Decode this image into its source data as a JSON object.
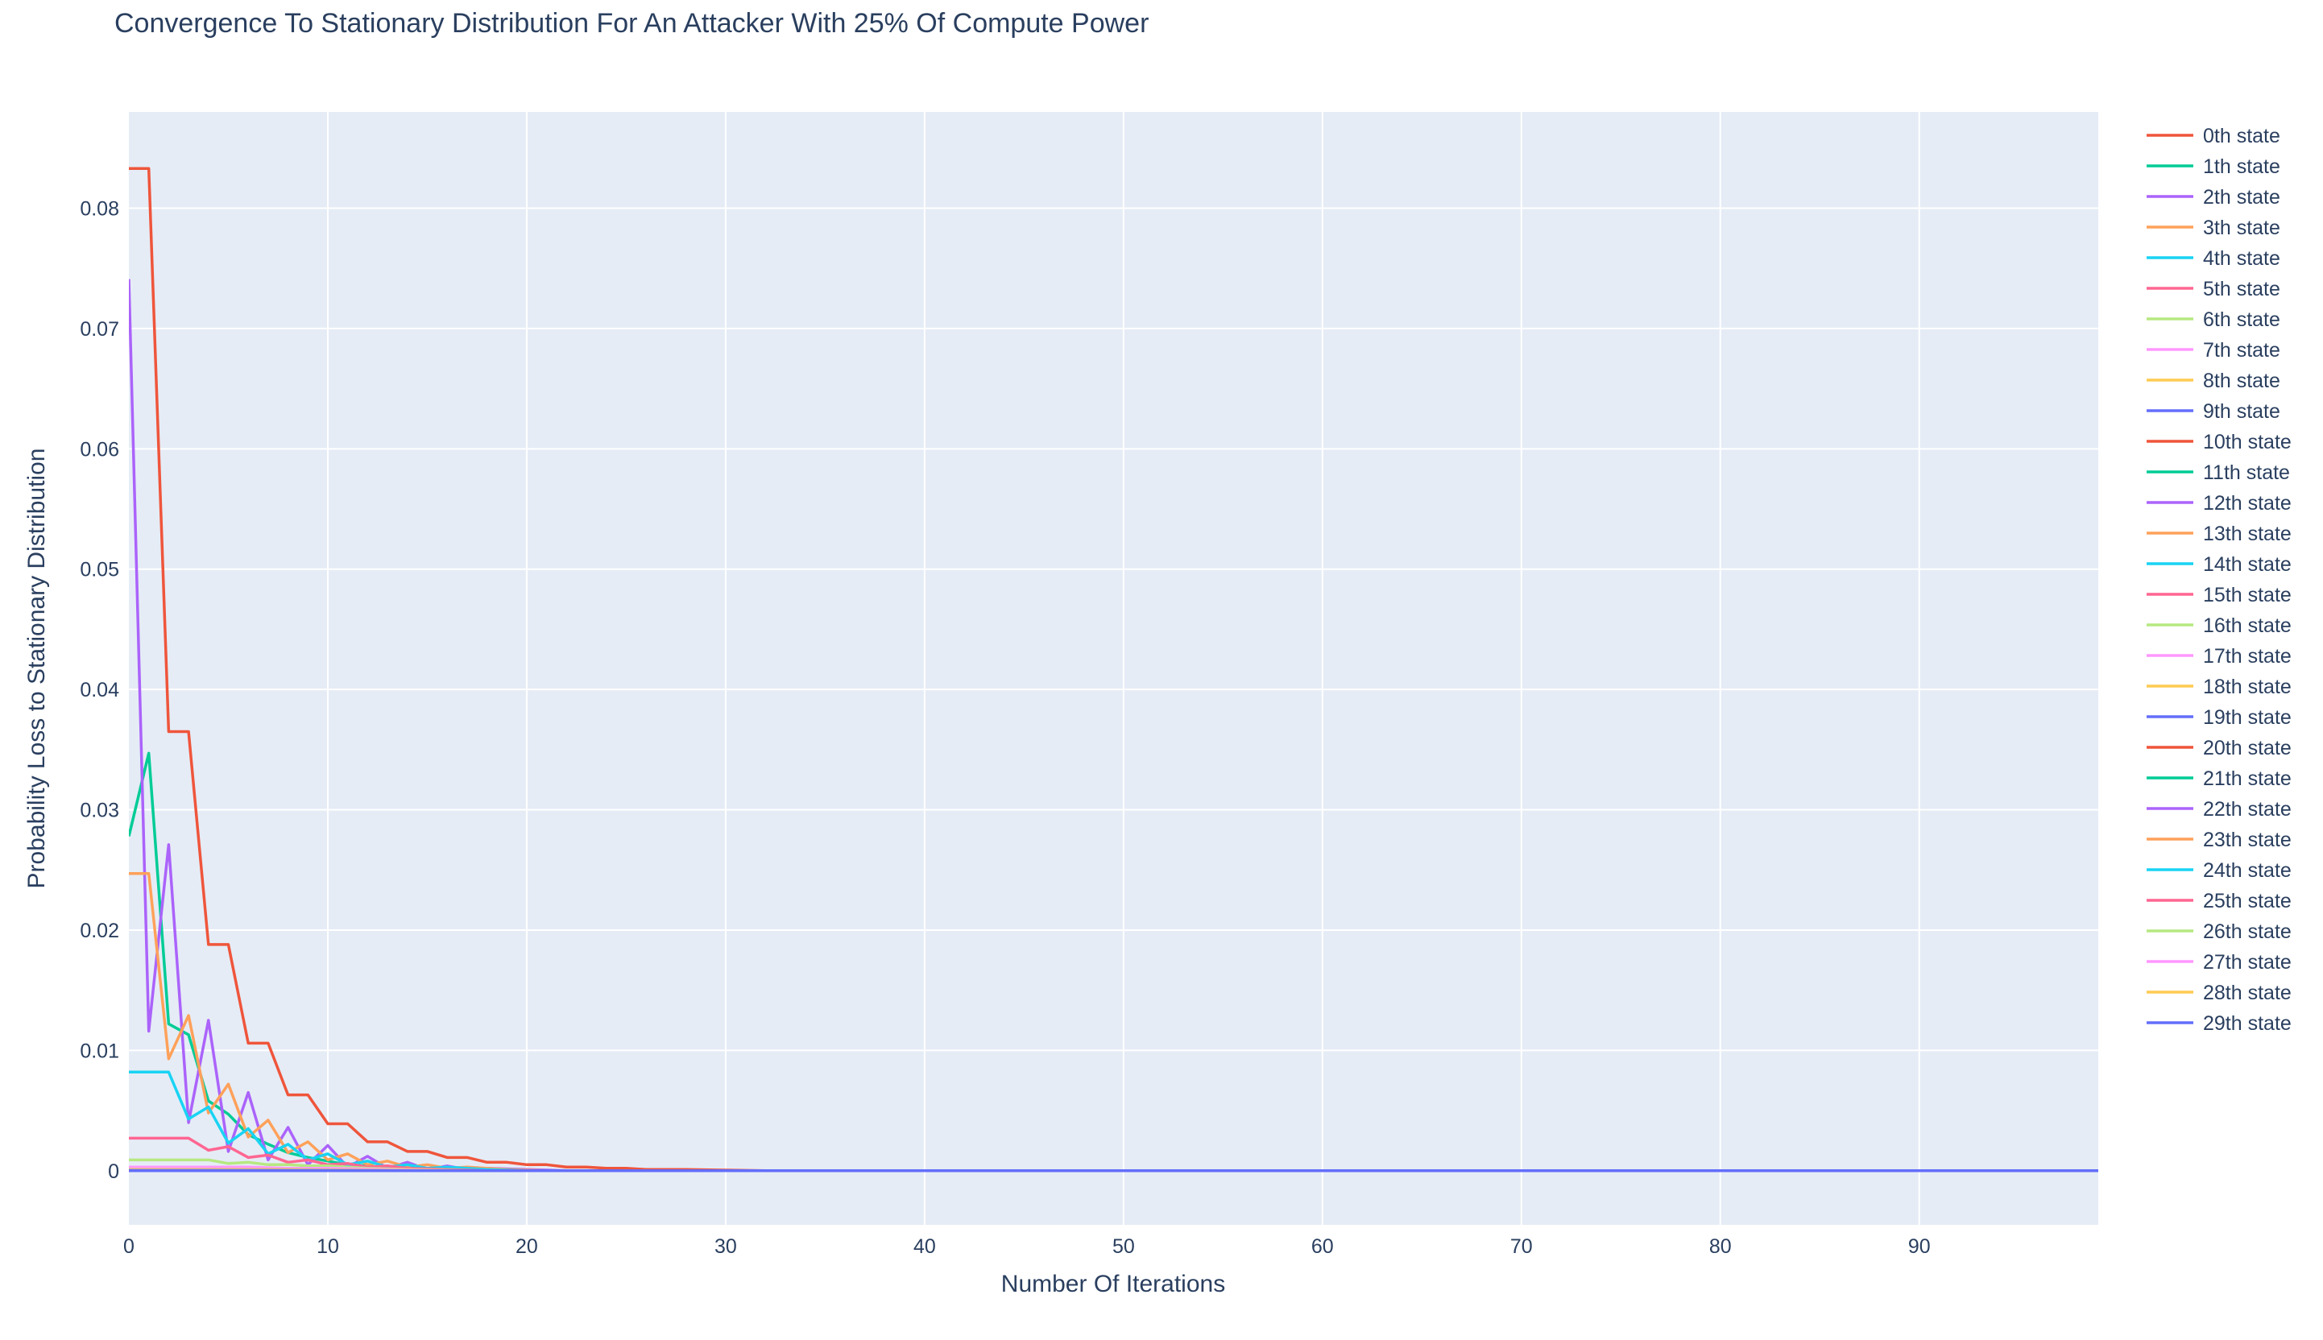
{
  "chart_data": {
    "type": "line",
    "title": "Convergence To Stationary Distribution For An Attacker With 25% Of Compute Power",
    "xlabel": "Number Of Iterations",
    "ylabel": "Probability Loss to Stationary Distribution",
    "xlim": [
      0,
      99
    ],
    "ylim": [
      -0.0045,
      0.088
    ],
    "xticks": [
      0,
      10,
      20,
      30,
      40,
      50,
      60,
      70,
      80,
      90
    ],
    "yticks": [
      0,
      0.01,
      0.02,
      0.03,
      0.04,
      0.05,
      0.06,
      0.07,
      0.08
    ],
    "ytick_labels": [
      "0",
      "0.01",
      "0.02",
      "0.03",
      "0.04",
      "0.05",
      "0.06",
      "0.07",
      "0.08"
    ],
    "grid": true,
    "legend_position": "right",
    "background_color": "#e5ecf6",
    "series": [
      {
        "name": "0th state",
        "color": "#EF553B",
        "points": [
          [
            0,
            0.0833
          ],
          [
            1,
            0.0833
          ],
          [
            2,
            0.0365
          ],
          [
            3,
            0.0365
          ],
          [
            4,
            0.0188
          ],
          [
            5,
            0.0188
          ],
          [
            6,
            0.0106
          ],
          [
            7,
            0.0106
          ],
          [
            8,
            0.0063
          ],
          [
            9,
            0.0063
          ],
          [
            10,
            0.0039
          ],
          [
            11,
            0.0039
          ],
          [
            12,
            0.0024
          ],
          [
            13,
            0.0024
          ],
          [
            14,
            0.0016
          ],
          [
            15,
            0.0016
          ],
          [
            16,
            0.0011
          ],
          [
            17,
            0.0011
          ],
          [
            18,
            0.0007
          ],
          [
            19,
            0.0007
          ],
          [
            20,
            0.0005
          ],
          [
            21,
            0.0005
          ],
          [
            22,
            0.0003
          ],
          [
            23,
            0.0003
          ],
          [
            24,
            0.0002
          ],
          [
            25,
            0.0002
          ],
          [
            26,
            0.0001
          ],
          [
            28,
            0.0001
          ],
          [
            30,
            5e-05
          ],
          [
            32,
            0
          ],
          [
            99,
            0
          ]
        ]
      },
      {
        "name": "1th state",
        "color": "#00CC96",
        "points": [
          [
            0,
            0.0278
          ],
          [
            1,
            0.0347
          ],
          [
            2,
            0.0122
          ],
          [
            3,
            0.0113
          ],
          [
            4,
            0.0058
          ],
          [
            5,
            0.0047
          ],
          [
            6,
            0.003
          ],
          [
            7,
            0.0022
          ],
          [
            8,
            0.0015
          ],
          [
            9,
            0.0011
          ],
          [
            10,
            0.0008
          ],
          [
            11,
            0.0005
          ],
          [
            12,
            0.0004
          ],
          [
            13,
            0.0002
          ],
          [
            14,
            0.0002
          ],
          [
            16,
            0.0001
          ],
          [
            18,
            0
          ],
          [
            99,
            0
          ]
        ]
      },
      {
        "name": "2th state",
        "color": "#AB63FA",
        "points": [
          [
            0,
            0.0741
          ],
          [
            1,
            0.0116
          ],
          [
            2,
            0.0271
          ],
          [
            3,
            0.004
          ],
          [
            4,
            0.0125
          ],
          [
            5,
            0.0016
          ],
          [
            6,
            0.0065
          ],
          [
            7,
            0.0009
          ],
          [
            8,
            0.0036
          ],
          [
            9,
            0.0005
          ],
          [
            10,
            0.0021
          ],
          [
            11,
            0.0003
          ],
          [
            12,
            0.0012
          ],
          [
            13,
            0.0002
          ],
          [
            14,
            0.0007
          ],
          [
            15,
            0.0001
          ],
          [
            16,
            0.0004
          ],
          [
            17,
            0.0001
          ],
          [
            18,
            0.0002
          ],
          [
            20,
            0.0001
          ],
          [
            22,
            0
          ],
          [
            99,
            0
          ]
        ]
      },
      {
        "name": "3th state",
        "color": "#FFA15A",
        "points": [
          [
            0,
            0.0247
          ],
          [
            1,
            0.0247
          ],
          [
            2,
            0.0093
          ],
          [
            3,
            0.0129
          ],
          [
            4,
            0.0048
          ],
          [
            5,
            0.0072
          ],
          [
            6,
            0.0028
          ],
          [
            7,
            0.0042
          ],
          [
            8,
            0.0015
          ],
          [
            9,
            0.0024
          ],
          [
            10,
            0.0009
          ],
          [
            11,
            0.0014
          ],
          [
            12,
            0.0005
          ],
          [
            13,
            0.0008
          ],
          [
            14,
            0.0003
          ],
          [
            15,
            0.0005
          ],
          [
            16,
            0.0002
          ],
          [
            17,
            0.0003
          ],
          [
            19,
            0.0001
          ],
          [
            21,
            0
          ],
          [
            99,
            0
          ]
        ]
      },
      {
        "name": "4th state",
        "color": "#19D3F3",
        "points": [
          [
            0,
            0.0082
          ],
          [
            1,
            0.0082
          ],
          [
            2,
            0.0082
          ],
          [
            3,
            0.0043
          ],
          [
            4,
            0.0053
          ],
          [
            5,
            0.0023
          ],
          [
            6,
            0.0035
          ],
          [
            7,
            0.0014
          ],
          [
            8,
            0.0022
          ],
          [
            9,
            0.0009
          ],
          [
            10,
            0.0014
          ],
          [
            11,
            0.0005
          ],
          [
            12,
            0.0008
          ],
          [
            13,
            0.0003
          ],
          [
            14,
            0.0005
          ],
          [
            15,
            0.0002
          ],
          [
            16,
            0.0003
          ],
          [
            18,
            0.0001
          ],
          [
            20,
            0
          ],
          [
            99,
            0
          ]
        ]
      },
      {
        "name": "5th state",
        "color": "#FF6692",
        "points": [
          [
            0,
            0.0027
          ],
          [
            1,
            0.0027
          ],
          [
            2,
            0.0027
          ],
          [
            3,
            0.0027
          ],
          [
            4,
            0.0017
          ],
          [
            5,
            0.002
          ],
          [
            6,
            0.0011
          ],
          [
            7,
            0.0013
          ],
          [
            8,
            0.0007
          ],
          [
            9,
            0.0009
          ],
          [
            10,
            0.0005
          ],
          [
            11,
            0.0006
          ],
          [
            12,
            0.0003
          ],
          [
            13,
            0.0004
          ],
          [
            14,
            0.0002
          ],
          [
            16,
            0.0001
          ],
          [
            18,
            0
          ],
          [
            99,
            0
          ]
        ]
      },
      {
        "name": "6th state",
        "color": "#B6E880",
        "points": [
          [
            0,
            0.0009
          ],
          [
            1,
            0.0009
          ],
          [
            2,
            0.0009
          ],
          [
            3,
            0.0009
          ],
          [
            4,
            0.0009
          ],
          [
            5,
            0.0006
          ],
          [
            6,
            0.0007
          ],
          [
            7,
            0.0005
          ],
          [
            8,
            0.0005
          ],
          [
            9,
            0.0004
          ],
          [
            10,
            0.0004
          ],
          [
            12,
            0.0002
          ],
          [
            14,
            0.0001
          ],
          [
            17,
            0
          ],
          [
            99,
            0
          ]
        ]
      },
      {
        "name": "7th state",
        "color": "#FF97FF",
        "points": [
          [
            0,
            0.0003
          ],
          [
            6,
            0.0003
          ],
          [
            8,
            0.0002
          ],
          [
            10,
            0.0002
          ],
          [
            13,
            0.0001
          ],
          [
            16,
            0
          ],
          [
            99,
            0
          ]
        ]
      },
      {
        "name": "8th state",
        "color": "#FECB52",
        "points": [
          [
            0,
            0.0001
          ],
          [
            8,
            0.0001
          ],
          [
            12,
            5e-05
          ],
          [
            16,
            0
          ],
          [
            99,
            0
          ]
        ]
      },
      {
        "name": "9th state",
        "color": "#636EFA",
        "points": [
          [
            0,
            3e-05
          ],
          [
            10,
            3e-05
          ],
          [
            15,
            0
          ],
          [
            99,
            0
          ]
        ]
      },
      {
        "name": "10th state",
        "color": "#EF553B",
        "points": [
          [
            0,
            0
          ],
          [
            99,
            0
          ]
        ]
      },
      {
        "name": "11th state",
        "color": "#00CC96",
        "points": [
          [
            0,
            0
          ],
          [
            99,
            0
          ]
        ]
      },
      {
        "name": "12th state",
        "color": "#AB63FA",
        "points": [
          [
            0,
            0
          ],
          [
            99,
            0
          ]
        ]
      },
      {
        "name": "13th state",
        "color": "#FFA15A",
        "points": [
          [
            0,
            0
          ],
          [
            99,
            0
          ]
        ]
      },
      {
        "name": "14th state",
        "color": "#19D3F3",
        "points": [
          [
            0,
            0
          ],
          [
            99,
            0
          ]
        ]
      },
      {
        "name": "15th state",
        "color": "#FF6692",
        "points": [
          [
            0,
            0
          ],
          [
            99,
            0
          ]
        ]
      },
      {
        "name": "16th state",
        "color": "#B6E880",
        "points": [
          [
            0,
            0
          ],
          [
            99,
            0
          ]
        ]
      },
      {
        "name": "17th state",
        "color": "#FF97FF",
        "points": [
          [
            0,
            0
          ],
          [
            99,
            0
          ]
        ]
      },
      {
        "name": "18th state",
        "color": "#FECB52",
        "points": [
          [
            0,
            0
          ],
          [
            99,
            0
          ]
        ]
      },
      {
        "name": "19th state",
        "color": "#636EFA",
        "points": [
          [
            0,
            0
          ],
          [
            99,
            0
          ]
        ]
      },
      {
        "name": "20th state",
        "color": "#EF553B",
        "points": [
          [
            0,
            0
          ],
          [
            99,
            0
          ]
        ]
      },
      {
        "name": "21th state",
        "color": "#00CC96",
        "points": [
          [
            0,
            0
          ],
          [
            99,
            0
          ]
        ]
      },
      {
        "name": "22th state",
        "color": "#AB63FA",
        "points": [
          [
            0,
            0
          ],
          [
            99,
            0
          ]
        ]
      },
      {
        "name": "23th state",
        "color": "#FFA15A",
        "points": [
          [
            0,
            0
          ],
          [
            99,
            0
          ]
        ]
      },
      {
        "name": "24th state",
        "color": "#19D3F3",
        "points": [
          [
            0,
            0
          ],
          [
            99,
            0
          ]
        ]
      },
      {
        "name": "25th state",
        "color": "#FF6692",
        "points": [
          [
            0,
            0
          ],
          [
            99,
            0
          ]
        ]
      },
      {
        "name": "26th state",
        "color": "#B6E880",
        "points": [
          [
            0,
            0
          ],
          [
            99,
            0
          ]
        ]
      },
      {
        "name": "27th state",
        "color": "#FF97FF",
        "points": [
          [
            0,
            0
          ],
          [
            99,
            0
          ]
        ]
      },
      {
        "name": "28th state",
        "color": "#FECB52",
        "points": [
          [
            0,
            0
          ],
          [
            99,
            0
          ]
        ]
      },
      {
        "name": "29th state",
        "color": "#636EFA",
        "points": [
          [
            0,
            0
          ],
          [
            99,
            0
          ]
        ]
      }
    ]
  }
}
